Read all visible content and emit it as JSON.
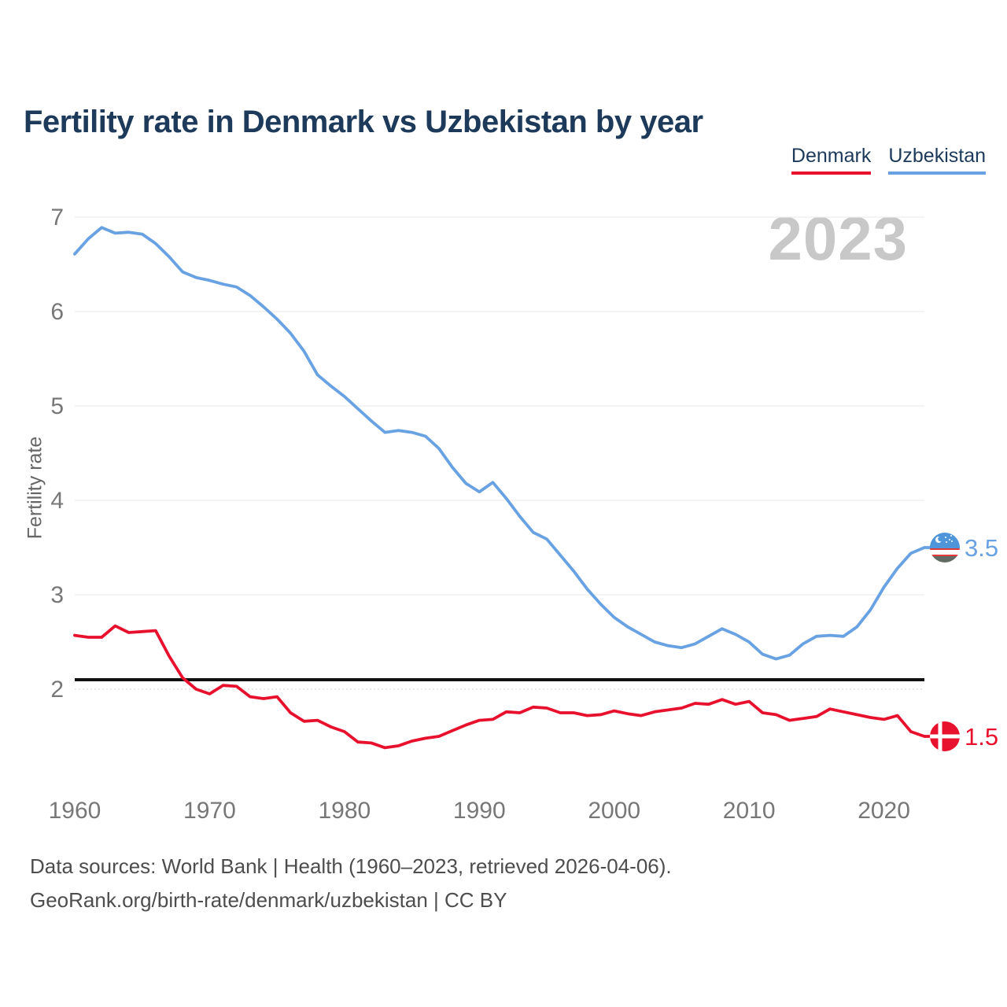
{
  "title": "Fertility rate in Denmark vs Uzbekistan by year",
  "watermark": "2023",
  "legend": [
    {
      "label": "Denmark",
      "color": "#e8112d"
    },
    {
      "label": "Uzbekistan",
      "color": "#68a2e2"
    }
  ],
  "footer": {
    "line1": "Data sources: World Bank | Health (1960–2023, retrieved 2026-04-06).",
    "line2": "GeoRank.org/birth-rate/denmark/uzbekistan | CC BY"
  },
  "chart_data": {
    "type": "line",
    "title": "Fertility rate in Denmark vs Uzbekistan by year",
    "xlabel": "",
    "ylabel": "Fertility rate",
    "xlim": [
      1960,
      2023
    ],
    "ylim": [
      1.2,
      7.2
    ],
    "y_ticks": [
      7,
      6,
      5,
      4,
      3,
      2
    ],
    "x_ticks": [
      1960,
      1970,
      1980,
      1990,
      2000,
      2010,
      2020
    ],
    "grid": true,
    "legend_position": "top-right",
    "reference_line": {
      "value": 2.1,
      "color": "#111111"
    },
    "x": [
      1960,
      1961,
      1962,
      1963,
      1964,
      1965,
      1966,
      1967,
      1968,
      1969,
      1970,
      1971,
      1972,
      1973,
      1974,
      1975,
      1976,
      1977,
      1978,
      1979,
      1980,
      1981,
      1982,
      1983,
      1984,
      1985,
      1986,
      1987,
      1988,
      1989,
      1990,
      1991,
      1992,
      1993,
      1994,
      1995,
      1996,
      1997,
      1998,
      1999,
      2000,
      2001,
      2002,
      2003,
      2004,
      2005,
      2006,
      2007,
      2008,
      2009,
      2010,
      2011,
      2012,
      2013,
      2014,
      2015,
      2016,
      2017,
      2018,
      2019,
      2020,
      2021,
      2022,
      2023
    ],
    "series": [
      {
        "name": "Denmark",
        "color": "#e8112d",
        "end_label": "1.5",
        "flag": "denmark",
        "values": [
          2.57,
          2.55,
          2.55,
          2.67,
          2.6,
          2.61,
          2.62,
          2.35,
          2.12,
          2.0,
          1.95,
          2.04,
          2.03,
          1.92,
          1.9,
          1.92,
          1.75,
          1.66,
          1.67,
          1.6,
          1.55,
          1.44,
          1.43,
          1.38,
          1.4,
          1.45,
          1.48,
          1.5,
          1.56,
          1.62,
          1.67,
          1.68,
          1.76,
          1.75,
          1.81,
          1.8,
          1.75,
          1.75,
          1.72,
          1.73,
          1.77,
          1.74,
          1.72,
          1.76,
          1.78,
          1.8,
          1.85,
          1.84,
          1.89,
          1.84,
          1.87,
          1.75,
          1.73,
          1.67,
          1.69,
          1.71,
          1.79,
          1.76,
          1.73,
          1.7,
          1.68,
          1.72,
          1.55,
          1.5
        ]
      },
      {
        "name": "Uzbekistan",
        "color": "#68a2e2",
        "end_label": "3.5",
        "flag": "uzbekistan",
        "values": [
          6.61,
          6.77,
          6.89,
          6.83,
          6.84,
          6.82,
          6.72,
          6.58,
          6.42,
          6.36,
          6.33,
          6.29,
          6.26,
          6.17,
          6.05,
          5.92,
          5.77,
          5.58,
          5.33,
          5.21,
          5.1,
          4.97,
          4.84,
          4.72,
          4.74,
          4.72,
          4.68,
          4.55,
          4.35,
          4.18,
          4.09,
          4.19,
          4.02,
          3.83,
          3.66,
          3.59,
          3.42,
          3.25,
          3.06,
          2.9,
          2.76,
          2.66,
          2.58,
          2.5,
          2.46,
          2.44,
          2.48,
          2.56,
          2.64,
          2.58,
          2.5,
          2.37,
          2.32,
          2.36,
          2.48,
          2.56,
          2.57,
          2.56,
          2.66,
          2.84,
          3.08,
          3.28,
          3.44,
          3.5
        ]
      }
    ]
  }
}
